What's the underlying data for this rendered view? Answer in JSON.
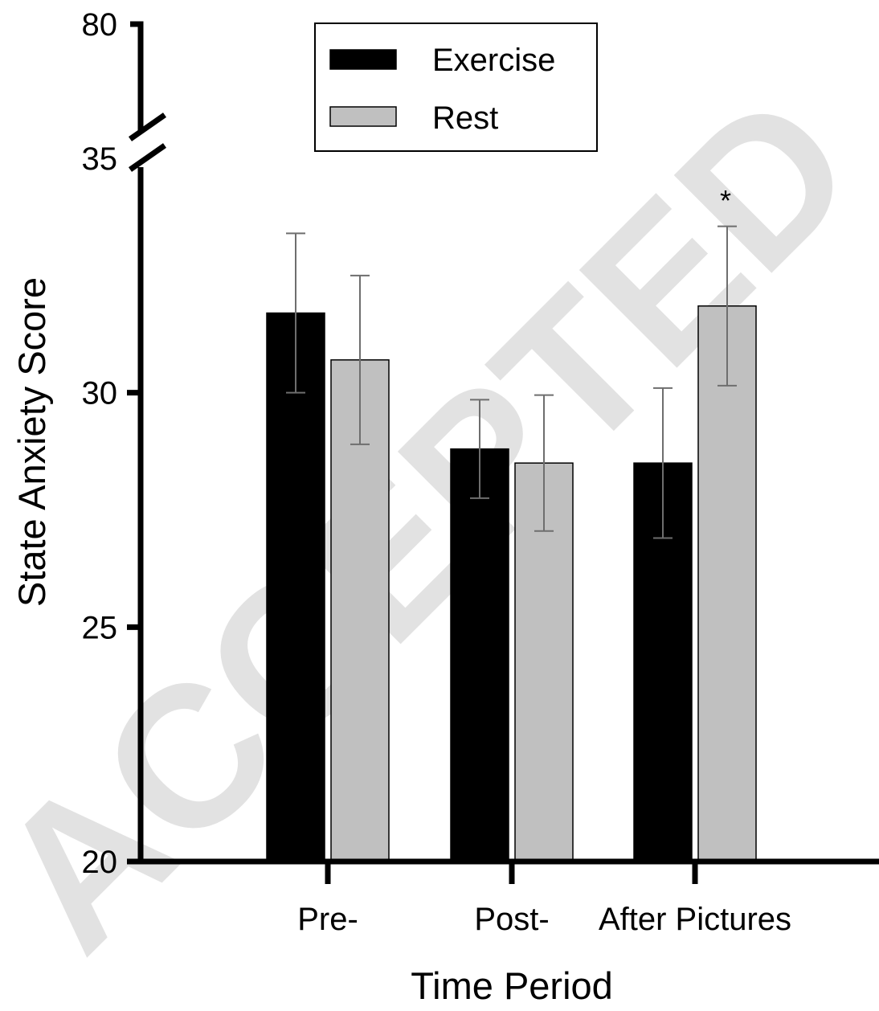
{
  "watermark": "ACCEPTED",
  "chart_data": {
    "type": "bar",
    "xlabel": "Time Period",
    "ylabel": "State Anxiety Score",
    "categories": [
      "Pre-",
      "Post-",
      "After Pictures"
    ],
    "series": [
      {
        "name": "Exercise",
        "color": "#000000",
        "values": [
          31.7,
          28.8,
          28.5
        ],
        "error": [
          1.7,
          1.05,
          1.6
        ]
      },
      {
        "name": "Rest",
        "color": "#c0c0c0",
        "values": [
          30.7,
          28.5,
          31.85
        ],
        "error": [
          1.8,
          1.45,
          1.7
        ]
      }
    ],
    "yticks": [
      "20",
      "25",
      "30",
      "35",
      "80"
    ],
    "ylim": [
      20,
      35
    ],
    "y_axis_break": {
      "lower_top": 35,
      "upper_value": 80
    },
    "annotations": [
      {
        "text": "*",
        "category": "After Pictures",
        "series": "Rest"
      }
    ],
    "legend_position": "top-center",
    "grid": false
  }
}
